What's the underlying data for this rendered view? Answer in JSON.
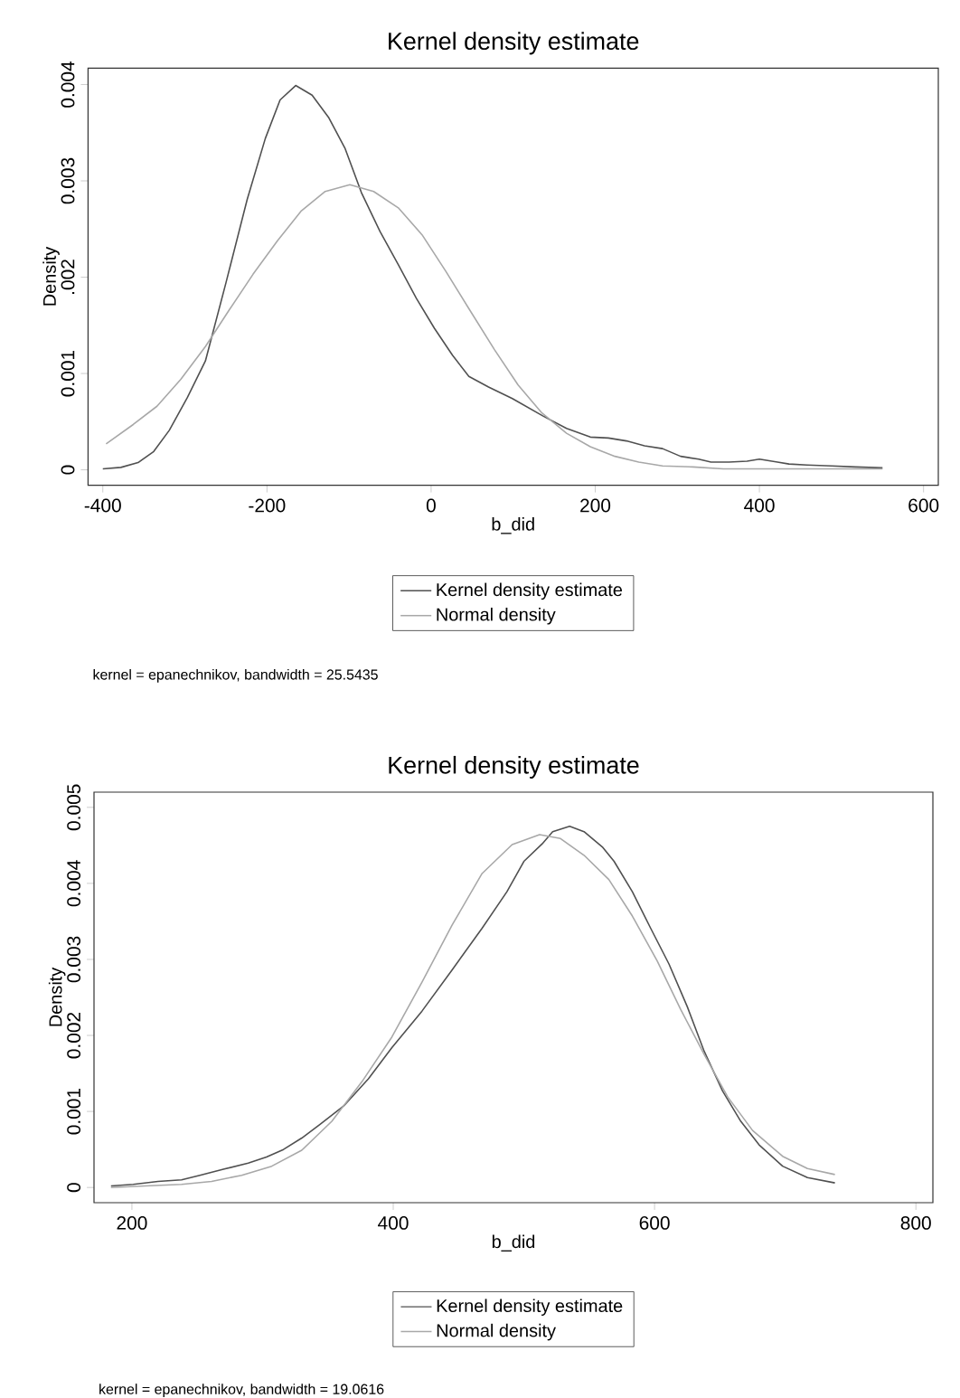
{
  "chart_data": [
    {
      "type": "line",
      "title": "Kernel density estimate",
      "xlabel": "b_did",
      "ylabel": "Density",
      "legend": "bottom",
      "annotations": [
        "kernel = epanechnikov, bandwidth = 25.5435"
      ],
      "xlim": [
        -418,
        618
      ],
      "ylim": [
        -0.00016,
        0.00417
      ],
      "xticks": [
        -400,
        -200,
        0,
        200,
        400,
        600
      ],
      "yticks": [
        0,
        0.001,
        {
          "value": 0.002,
          "label": ".002"
        },
        0.003,
        0.004
      ],
      "series": [
        {
          "name": "Kernel density estimate",
          "color": "#505050",
          "x": [
            -400,
            -378,
            -357,
            -338,
            -319,
            -297,
            -275,
            -250,
            -224,
            -202,
            -184,
            -165,
            -145,
            -125,
            -105,
            -85,
            -62,
            -40,
            -18,
            4,
            26,
            46,
            70,
            99,
            136,
            165,
            194,
            216,
            238,
            260,
            282,
            304,
            326,
            341,
            363,
            385,
            400,
            422,
            436,
            458,
            488,
            517,
            550
          ],
          "values": [
            1e-05,
            2.5e-05,
            7.5e-05,
            0.00019,
            0.00041,
            0.00075,
            0.00113,
            0.00194,
            0.00281,
            0.00344,
            0.00384,
            0.00399,
            0.00389,
            0.00366,
            0.00334,
            0.00288,
            0.00247,
            0.00213,
            0.00178,
            0.00147,
            0.00119,
            0.00097,
            0.00086,
            0.00074,
            0.00056,
            0.00043,
            0.00034,
            0.00033,
            0.0003,
            0.00025,
            0.00022,
            0.00014,
            0.00011,
            8e-05,
            8e-05,
            9e-05,
            0.00011,
            8e-05,
            6e-05,
            5e-05,
            4e-05,
            3e-05,
            2e-05
          ]
        },
        {
          "name": "Normal density",
          "color": "#a8a8a8",
          "x": [
            -396,
            -363,
            -334,
            -305,
            -275,
            -246,
            -217,
            -187,
            -158,
            -129,
            -99,
            -70,
            -40,
            -11,
            18,
            47,
            77,
            106,
            135,
            165,
            194,
            224,
            253,
            282,
            319,
            356,
            429,
            502,
            550
          ],
          "values": [
            0.00027,
            0.00047,
            0.00066,
            0.00094,
            0.00128,
            0.00166,
            0.00203,
            0.00238,
            0.00269,
            0.00289,
            0.00296,
            0.00289,
            0.00272,
            0.00244,
            0.00206,
            0.00166,
            0.00125,
            0.00088,
            0.00059,
            0.00038,
            0.00024,
            0.00014,
            8e-05,
            4e-05,
            3e-05,
            1e-05,
            1e-05,
            1e-05,
            1e-05
          ]
        }
      ]
    },
    {
      "type": "line",
      "title": "Kernel density estimate",
      "xlabel": "b_did",
      "ylabel": "Density",
      "legend": "bottom",
      "annotations": [
        "kernel = epanechnikov, bandwidth = 19.0616"
      ],
      "xlim": [
        171,
        813
      ],
      "ylim": [
        -0.0002,
        0.0052
      ],
      "xticks": [
        200,
        400,
        600,
        800
      ],
      "yticks": [
        0,
        0.001,
        0.002,
        0.003,
        0.004,
        0.005
      ],
      "series": [
        {
          "name": "Kernel density estimate",
          "color": "#505050",
          "x": [
            184,
            201,
            220,
            238,
            252,
            270,
            289,
            303,
            316,
            330,
            344,
            362,
            381,
            399,
            422,
            445,
            468,
            487,
            500,
            514,
            522,
            535,
            546,
            560,
            569,
            583,
            597,
            611,
            625,
            638,
            652,
            666,
            680,
            698,
            717,
            738
          ],
          "values": [
            2e-05,
            4e-05,
            8e-05,
            0.0001,
            0.00016,
            0.00024,
            0.00032,
            0.0004,
            0.0005,
            0.00065,
            0.00083,
            0.00107,
            0.00143,
            0.00184,
            0.00232,
            0.00286,
            0.00341,
            0.00389,
            0.00429,
            0.00452,
            0.00468,
            0.00475,
            0.00468,
            0.00448,
            0.00429,
            0.00389,
            0.00341,
            0.00294,
            0.00238,
            0.00179,
            0.00127,
            0.00087,
            0.00056,
            0.00028,
            0.00013,
            6e-05
          ]
        },
        {
          "name": "Normal density",
          "color": "#a8a8a8",
          "x": [
            184,
            210,
            238,
            261,
            284,
            307,
            330,
            353,
            376,
            399,
            422,
            445,
            468,
            491,
            512,
            528,
            546,
            565,
            583,
            602,
            620,
            638,
            656,
            675,
            698,
            717,
            738
          ],
          "values": [
            0.0,
            2e-05,
            4e-05,
            8e-05,
            0.00016,
            0.00028,
            0.00049,
            0.00087,
            0.00139,
            0.00198,
            0.0027,
            0.00345,
            0.00413,
            0.00451,
            0.00464,
            0.00459,
            0.00437,
            0.00405,
            0.00357,
            0.00298,
            0.00234,
            0.00175,
            0.00119,
            0.00075,
            0.00041,
            0.00025,
            0.00017
          ]
        }
      ]
    }
  ]
}
